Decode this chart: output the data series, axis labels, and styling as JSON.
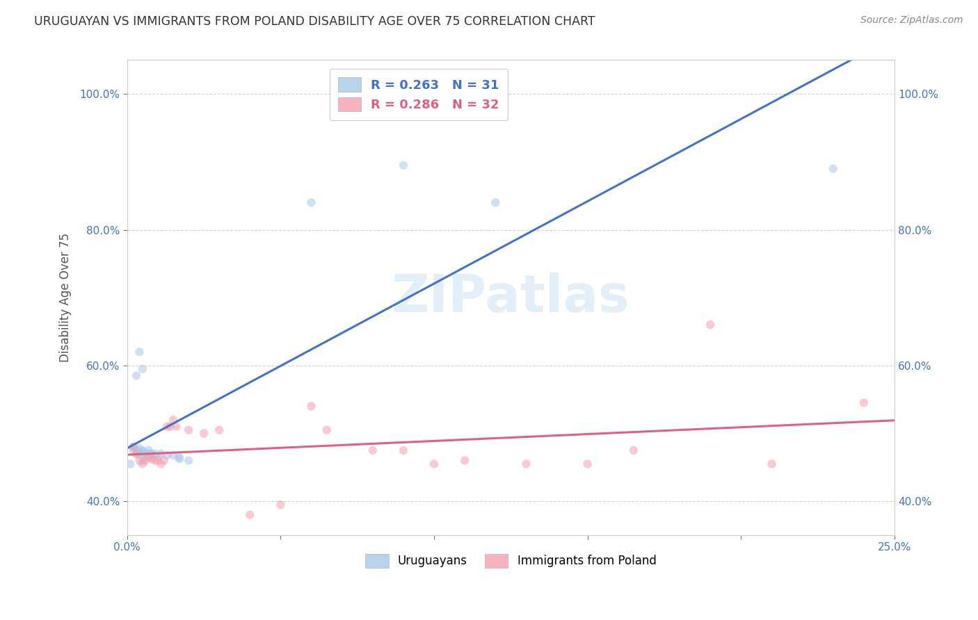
{
  "title": "URUGUAYAN VS IMMIGRANTS FROM POLAND DISABILITY AGE OVER 75 CORRELATION CHART",
  "source": "Source: ZipAtlas.com",
  "ylabel": "Disability Age Over 75",
  "xlim": [
    0.0,
    0.25
  ],
  "ylim": [
    0.35,
    1.05
  ],
  "ytick_vals": [
    0.4,
    0.6,
    0.8,
    1.0
  ],
  "ytick_labels": [
    "40.0%",
    "60.0%",
    "80.0%",
    "100.0%"
  ],
  "xtick_vals": [
    0.0,
    0.05,
    0.1,
    0.15,
    0.2,
    0.25
  ],
  "xtick_labels": [
    "0.0%",
    "",
    "",
    "",
    "",
    "25.0%"
  ],
  "uruguayan_x": [
    0.001,
    0.002,
    0.002,
    0.003,
    0.003,
    0.004,
    0.004,
    0.005,
    0.005,
    0.005,
    0.006,
    0.006,
    0.007,
    0.007,
    0.008,
    0.008,
    0.009,
    0.01,
    0.011,
    0.013,
    0.015,
    0.017,
    0.017,
    0.02,
    0.003,
    0.004,
    0.005,
    0.06,
    0.09,
    0.12,
    0.23
  ],
  "uruguayan_y": [
    0.455,
    0.48,
    0.475,
    0.475,
    0.47,
    0.47,
    0.478,
    0.475,
    0.472,
    0.46,
    0.47,
    0.465,
    0.47,
    0.475,
    0.468,
    0.47,
    0.47,
    0.465,
    0.47,
    0.468,
    0.468,
    0.465,
    0.462,
    0.46,
    0.585,
    0.62,
    0.595,
    0.84,
    0.895,
    0.84,
    0.89
  ],
  "poland_x": [
    0.002,
    0.003,
    0.004,
    0.005,
    0.006,
    0.007,
    0.008,
    0.009,
    0.01,
    0.011,
    0.012,
    0.013,
    0.014,
    0.015,
    0.016,
    0.02,
    0.025,
    0.03,
    0.04,
    0.05,
    0.06,
    0.065,
    0.08,
    0.09,
    0.1,
    0.11,
    0.13,
    0.15,
    0.165,
    0.19,
    0.21,
    0.24
  ],
  "poland_y": [
    0.48,
    0.47,
    0.46,
    0.455,
    0.46,
    0.465,
    0.462,
    0.46,
    0.46,
    0.455,
    0.46,
    0.51,
    0.51,
    0.52,
    0.51,
    0.505,
    0.5,
    0.505,
    0.38,
    0.395,
    0.54,
    0.505,
    0.475,
    0.475,
    0.455,
    0.46,
    0.455,
    0.455,
    0.475,
    0.66,
    0.455,
    0.545
  ],
  "uruguayan_color": "#a8c8e8",
  "poland_color": "#f4a0b0",
  "uruguayan_line_color": "#4472c4",
  "poland_line_color": "#e06080",
  "background_color": "#ffffff",
  "grid_color": "#d0d0d0",
  "title_color": "#333333",
  "axis_label_color": "#555555",
  "tick_label_color": "#4472c4",
  "marker_size": 80,
  "marker_alpha": 0.55,
  "line_width": 2.2,
  "watermark_text": "ZIPatlas",
  "watermark_color": "#d0e4f4",
  "legend_R1": "R = 0.263",
  "legend_N1": "N = 31",
  "legend_R2": "R = 0.286",
  "legend_N2": "N = 32",
  "legend_label1": "Uruguayans",
  "legend_label2": "Immigrants from Poland"
}
